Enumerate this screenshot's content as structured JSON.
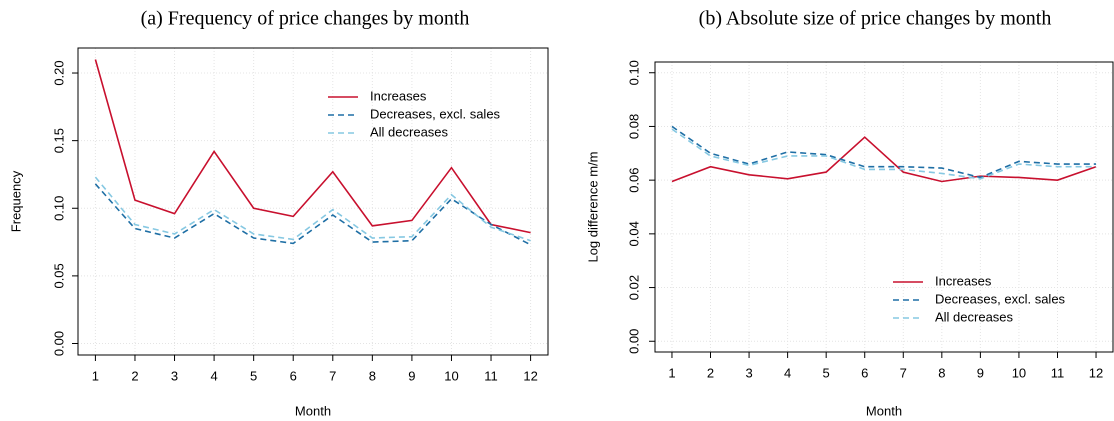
{
  "chart_data": [
    {
      "type": "line",
      "title": "(a) Frequency of price changes by month",
      "xlabel": "Month",
      "ylabel": "Frequency",
      "x": [
        1,
        2,
        3,
        4,
        5,
        6,
        7,
        8,
        9,
        10,
        11,
        12
      ],
      "xlim": [
        0.56,
        12.44
      ],
      "xticks": [
        1,
        2,
        3,
        4,
        5,
        6,
        7,
        8,
        9,
        10,
        11,
        12
      ],
      "ylim": [
        -0.0085,
        0.2185
      ],
      "yticks": [
        {
          "value": 0,
          "label": "0.00"
        },
        {
          "value": 0.05,
          "label": "0.05"
        },
        {
          "value": 0.1,
          "label": "0.10"
        },
        {
          "value": 0.15,
          "label": "0.15"
        },
        {
          "value": 0.2,
          "label": "0.20"
        }
      ],
      "grid": true,
      "legend": "top-right",
      "series": [
        {
          "name": "Increases",
          "color": "#c8102e",
          "dash": false,
          "values": [
            0.21,
            0.106,
            0.096,
            0.142,
            0.1,
            0.094,
            0.127,
            0.087,
            0.091,
            0.13,
            0.088,
            0.082
          ]
        },
        {
          "name": "Decreases, excl. sales",
          "color": "#1f6fa5",
          "dash": true,
          "values": [
            0.118,
            0.085,
            0.078,
            0.096,
            0.078,
            0.074,
            0.095,
            0.075,
            0.076,
            0.107,
            0.088,
            0.073
          ]
        },
        {
          "name": "All decreases",
          "color": "#86c8e2",
          "dash": true,
          "values": [
            0.123,
            0.088,
            0.081,
            0.099,
            0.081,
            0.077,
            0.099,
            0.078,
            0.079,
            0.11,
            0.086,
            0.076
          ]
        }
      ]
    },
    {
      "type": "line",
      "title": "(b) Absolute size of price changes by month",
      "xlabel": "Month",
      "ylabel": "Log difference m/m",
      "x": [
        1,
        2,
        3,
        4,
        5,
        6,
        7,
        8,
        9,
        10,
        11,
        12
      ],
      "xlim": [
        0.56,
        12.44
      ],
      "xticks": [
        1,
        2,
        3,
        4,
        5,
        6,
        7,
        8,
        9,
        10,
        11,
        12
      ],
      "ylim": [
        -0.004,
        0.104
      ],
      "yticks": [
        {
          "value": 0,
          "label": "0.00"
        },
        {
          "value": 0.02,
          "label": "0.02"
        },
        {
          "value": 0.04,
          "label": "0.04"
        },
        {
          "value": 0.06,
          "label": "0.06"
        },
        {
          "value": 0.08,
          "label": "0.08"
        },
        {
          "value": 0.1,
          "label": "0.10"
        }
      ],
      "grid": true,
      "legend": "bottom-right",
      "series": [
        {
          "name": "Increases",
          "color": "#c8102e",
          "dash": false,
          "values": [
            0.0595,
            0.065,
            0.062,
            0.0605,
            0.063,
            0.076,
            0.063,
            0.0595,
            0.0615,
            0.061,
            0.06,
            0.065
          ]
        },
        {
          "name": "Decreases, excl. sales",
          "color": "#1f6fa5",
          "dash": true,
          "values": [
            0.08,
            0.07,
            0.066,
            0.0705,
            0.0695,
            0.065,
            0.065,
            0.0645,
            0.061,
            0.067,
            0.066,
            0.066
          ]
        },
        {
          "name": "All decreases",
          "color": "#86c8e2",
          "dash": true,
          "values": [
            0.079,
            0.069,
            0.0655,
            0.069,
            0.069,
            0.064,
            0.064,
            0.0625,
            0.0605,
            0.066,
            0.065,
            0.065
          ]
        }
      ]
    }
  ]
}
